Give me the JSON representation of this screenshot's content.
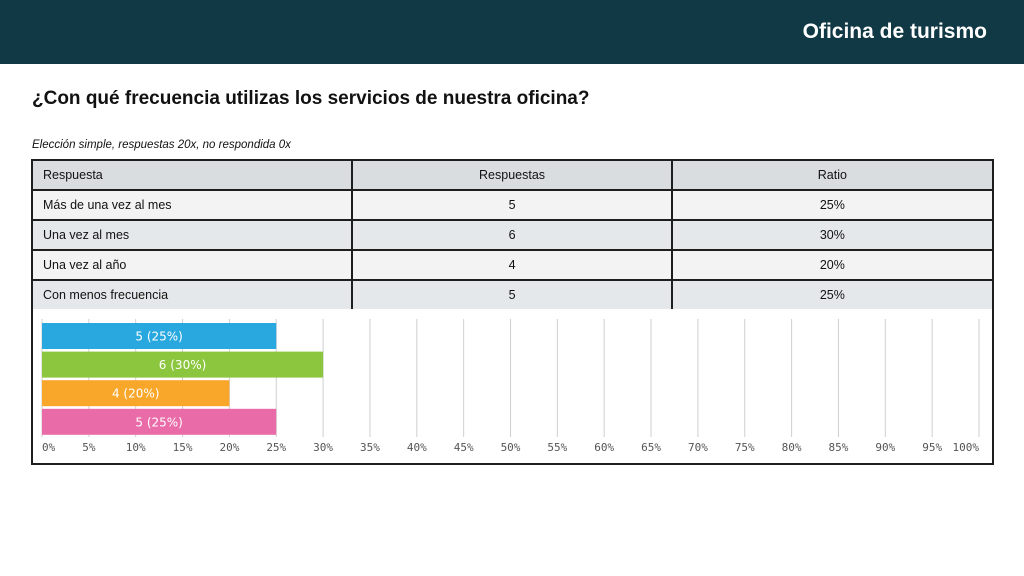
{
  "header": {
    "title": "Oficina de turismo"
  },
  "question": "¿Con qué frecuencia utilizas los servicios de nuestra oficina?",
  "meta": "Elección simple, respuestas 20x, no respondida 0x",
  "table": {
    "headers": [
      "Respuesta",
      "Respuestas",
      "Ratio"
    ],
    "rows": [
      {
        "label": "Más de una vez al mes",
        "count": "5",
        "ratio": "25%"
      },
      {
        "label": "Una vez al mes",
        "count": "6",
        "ratio": "30%"
      },
      {
        "label": "Una vez al año",
        "count": "4",
        "ratio": "20%"
      },
      {
        "label": "Con menos frecuencia",
        "count": "5",
        "ratio": "25%"
      }
    ]
  },
  "chart_data": {
    "type": "bar",
    "orientation": "horizontal",
    "categories": [
      "Más de una vez al mes",
      "Una vez al mes",
      "Una vez al año",
      "Con menos frecuencia"
    ],
    "values": [
      25,
      30,
      20,
      25
    ],
    "data_labels": [
      "5 (25%)",
      "6 (30%)",
      "4 (20%)",
      "5 (25%)"
    ],
    "colors": [
      "#29a8e0",
      "#8cc63f",
      "#f9a72b",
      "#e96ba8"
    ],
    "xlim": [
      0,
      100
    ],
    "x_ticks": [
      "0%",
      "5%",
      "10%",
      "15%",
      "20%",
      "25%",
      "30%",
      "35%",
      "40%",
      "45%",
      "50%",
      "55%",
      "60%",
      "65%",
      "70%",
      "75%",
      "80%",
      "85%",
      "90%",
      "95%",
      "100%"
    ],
    "grid": true
  }
}
